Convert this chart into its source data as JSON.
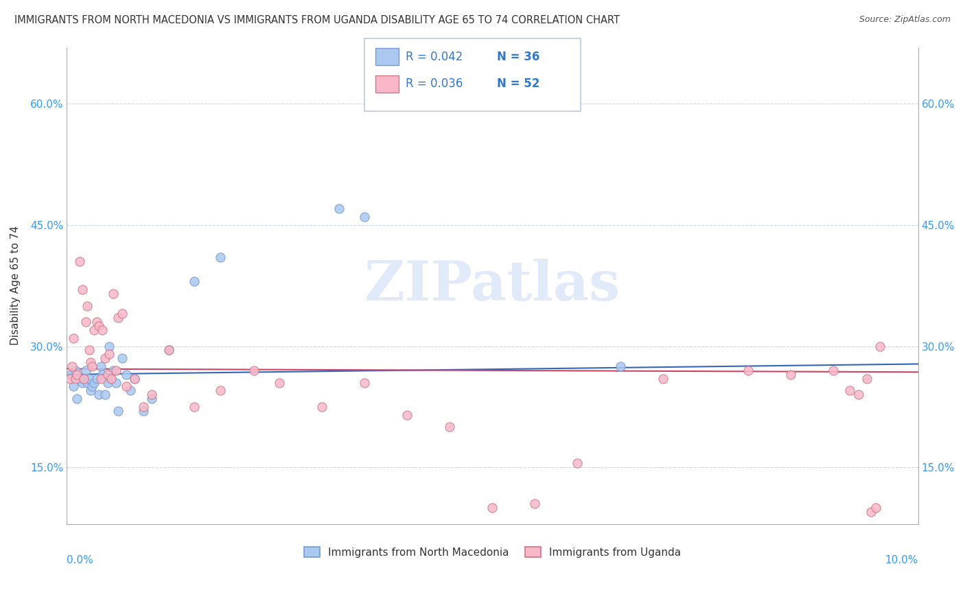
{
  "title": "IMMIGRANTS FROM NORTH MACEDONIA VS IMMIGRANTS FROM UGANDA DISABILITY AGE 65 TO 74 CORRELATION CHART",
  "source": "Source: ZipAtlas.com",
  "ylabel": "Disability Age 65 to 74",
  "xlim": [
    0.0,
    10.0
  ],
  "ylim": [
    8.0,
    67.0
  ],
  "watermark_text": "ZIPatlas",
  "yticks": [
    15.0,
    30.0,
    45.0,
    60.0
  ],
  "ytick_labels": [
    "15.0%",
    "30.0%",
    "45.0%",
    "60.0%"
  ],
  "series": [
    {
      "name": "Immigrants from North Macedonia",
      "dot_color": "#aac8f0",
      "edge_color": "#7799cc",
      "line_color": "#3366bb",
      "line_y0": 26.5,
      "line_y1": 27.8,
      "x": [
        0.05,
        0.08,
        0.1,
        0.12,
        0.15,
        0.18,
        0.2,
        0.22,
        0.24,
        0.26,
        0.28,
        0.3,
        0.32,
        0.35,
        0.38,
        0.4,
        0.42,
        0.45,
        0.48,
        0.5,
        0.52,
        0.55,
        0.58,
        0.6,
        0.65,
        0.7,
        0.75,
        0.8,
        0.9,
        1.0,
        1.2,
        1.5,
        1.8,
        3.2,
        3.5,
        6.5
      ],
      "y": [
        26.5,
        25.0,
        27.0,
        23.5,
        26.0,
        25.5,
        26.0,
        27.0,
        25.5,
        26.0,
        24.5,
        25.0,
        25.5,
        26.0,
        24.0,
        27.5,
        26.5,
        24.0,
        25.5,
        30.0,
        26.0,
        27.0,
        25.5,
        22.0,
        28.5,
        26.5,
        24.5,
        26.0,
        22.0,
        23.5,
        29.5,
        38.0,
        41.0,
        47.0,
        46.0,
        27.5
      ]
    },
    {
      "name": "Immigrants from Uganda",
      "dot_color": "#f8b8c8",
      "edge_color": "#cc7788",
      "line_color": "#cc4466",
      "line_y0": 27.2,
      "line_y1": 26.8,
      "x": [
        0.04,
        0.06,
        0.08,
        0.1,
        0.12,
        0.15,
        0.18,
        0.2,
        0.22,
        0.24,
        0.26,
        0.28,
        0.3,
        0.32,
        0.35,
        0.38,
        0.4,
        0.42,
        0.45,
        0.48,
        0.5,
        0.52,
        0.55,
        0.58,
        0.6,
        0.65,
        0.7,
        0.8,
        0.9,
        1.0,
        1.2,
        1.5,
        1.8,
        2.2,
        2.5,
        3.0,
        3.5,
        4.0,
        4.5,
        5.0,
        5.5,
        6.0,
        7.0,
        8.0,
        8.5,
        9.0,
        9.2,
        9.3,
        9.4,
        9.45,
        9.5,
        9.55
      ],
      "y": [
        26.0,
        27.5,
        31.0,
        26.0,
        26.5,
        40.5,
        37.0,
        26.0,
        33.0,
        35.0,
        29.5,
        28.0,
        27.5,
        32.0,
        33.0,
        32.5,
        26.0,
        32.0,
        28.5,
        26.5,
        29.0,
        26.0,
        36.5,
        27.0,
        33.5,
        34.0,
        25.0,
        26.0,
        22.5,
        24.0,
        29.5,
        22.5,
        24.5,
        27.0,
        25.5,
        22.5,
        25.5,
        21.5,
        20.0,
        10.0,
        10.5,
        15.5,
        26.0,
        27.0,
        26.5,
        27.0,
        24.5,
        24.0,
        26.0,
        9.5,
        10.0,
        30.0
      ]
    }
  ],
  "legend_entries": [
    {
      "R": "0.042",
      "N": "36",
      "dot_color": "#aac8f0",
      "edge_color": "#7799cc"
    },
    {
      "R": "0.036",
      "N": "52",
      "dot_color": "#f8b8c8",
      "edge_color": "#cc7788"
    }
  ],
  "bottom_legend": [
    {
      "label": "Immigrants from North Macedonia",
      "dot_color": "#aac8f0",
      "edge_color": "#7799cc"
    },
    {
      "label": "Immigrants from Uganda",
      "dot_color": "#f8b8c8",
      "edge_color": "#cc7788"
    }
  ]
}
